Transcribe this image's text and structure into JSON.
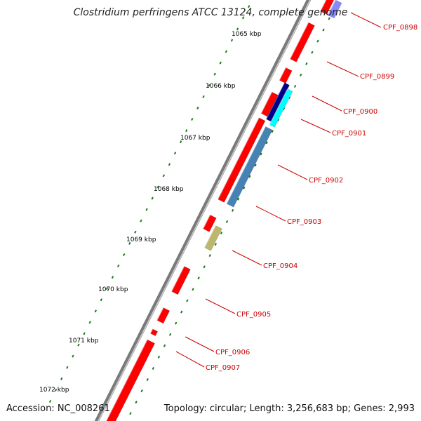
{
  "title": "Clostridium perfringens ATCC 13124, complete genome",
  "footer": {
    "accession": "Accession: NC_008261",
    "summary": "Topology: circular; Length: 3,256,683 bp; Genes: 2,993"
  },
  "colors": {
    "forward_cds": "#ff0000",
    "reverse_cds": "#ff0000",
    "backbone": "#808080",
    "dot_gc_pos": "#1a7a1a",
    "dot_gc_neg": "#1a7a1a",
    "label_gene": "#cc0000",
    "label_tick": "#000000",
    "gene_0900_0901_a": "#00008b",
    "gene_0900_0901_b": "#00ffff",
    "gene_0902_0903": "#4682b4",
    "gene_0904": "#bdb76b"
  },
  "tick_labels": [
    "1065 kbp",
    "1066 kbp",
    "1067 kbp",
    "1068 kbp",
    "1069 kbp",
    "1070 kbp",
    "1071 kbp",
    "1072 kbp"
  ],
  "gene_labels": [
    "CPF_0898",
    "CPF_0899",
    "CPF_0900",
    "CPF_0901",
    "CPF_0902",
    "CPF_0903",
    "CPF_0904",
    "CPF_0905",
    "CPF_0906",
    "CPF_0907"
  ]
}
